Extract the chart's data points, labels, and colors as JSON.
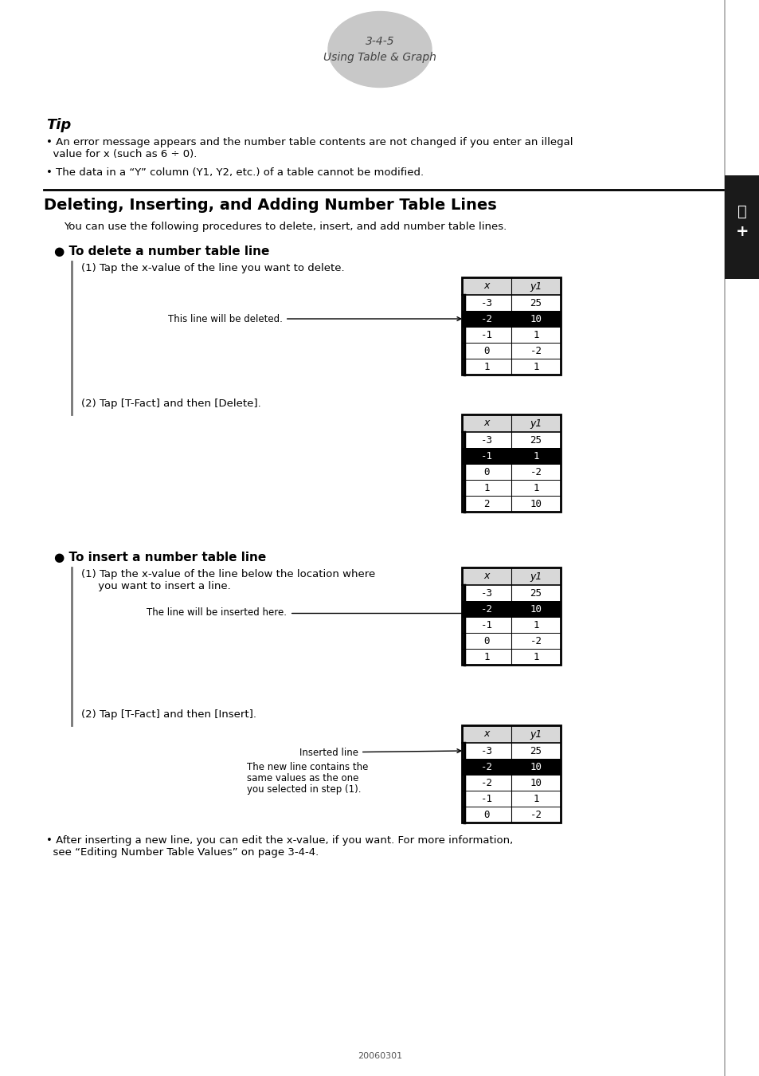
{
  "page_header_text": "3-4-5",
  "page_header_subtext": "Using Table & Graph",
  "tip_title": "Tip",
  "tip_line1": "• An error message appears and the number table contents are not changed if you enter an illegal",
  "tip_line1b": "  value for x (such as 6 ÷ 0).",
  "tip_line2": "• The data in a “Y” column (Y1, Y2, etc.) of a table cannot be modified.",
  "section_title": "Deleting, Inserting, and Adding Number Table Lines",
  "section_intro": "You can use the following procedures to delete, insert, and add number table lines.",
  "sub1_title": "● To delete a number table line",
  "sub1_step1": "(1) Tap the x-value of the line you want to delete.",
  "sub1_ann1": "This line will be deleted.",
  "sub1_step2": "(2) Tap [T-Fact] and then [Delete].",
  "sub2_title": "● To insert a number table line",
  "sub2_step1a": "(1) Tap the x-value of the line below the location where",
  "sub2_step1b": "     you want to insert a line.",
  "sub2_ann1": "The line will be inserted here.",
  "sub2_step2": "(2) Tap [T-Fact] and then [Insert].",
  "sub2_ann2": "Inserted line",
  "sub2_ann3a": "The new line contains the",
  "sub2_ann3b": "same values as the one",
  "sub2_ann3c": "you selected in step (1).",
  "bullet_after1": "• After inserting a new line, you can edit the x-value, if you want. For more information,",
  "bullet_after2": "  see “Editing Number Table Values” on page 3-4-4.",
  "page_number": "20060301",
  "table1": {
    "headers": [
      "x",
      "y1"
    ],
    "rows": [
      [
        "-3",
        "25"
      ],
      [
        "-2",
        "10"
      ],
      [
        "-1",
        "1"
      ],
      [
        "0",
        "-2"
      ],
      [
        "1",
        "1"
      ]
    ],
    "hi": 1
  },
  "table2": {
    "headers": [
      "x",
      "y1"
    ],
    "rows": [
      [
        "-3",
        "25"
      ],
      [
        "-1",
        "1"
      ],
      [
        "0",
        "-2"
      ],
      [
        "1",
        "1"
      ],
      [
        "2",
        "10"
      ]
    ],
    "hi": 1
  },
  "table3": {
    "headers": [
      "x",
      "y1"
    ],
    "rows": [
      [
        "-3",
        "25"
      ],
      [
        "-2",
        "10"
      ],
      [
        "-1",
        "1"
      ],
      [
        "0",
        "-2"
      ],
      [
        "1",
        "1"
      ]
    ],
    "hi": 1
  },
  "table4": {
    "headers": [
      "x",
      "y1"
    ],
    "rows": [
      [
        "-3",
        "25"
      ],
      [
        "-2",
        "10"
      ],
      [
        "-2",
        "10"
      ],
      [
        "-1",
        "1"
      ],
      [
        "0",
        "-2"
      ]
    ],
    "hi": 1
  }
}
